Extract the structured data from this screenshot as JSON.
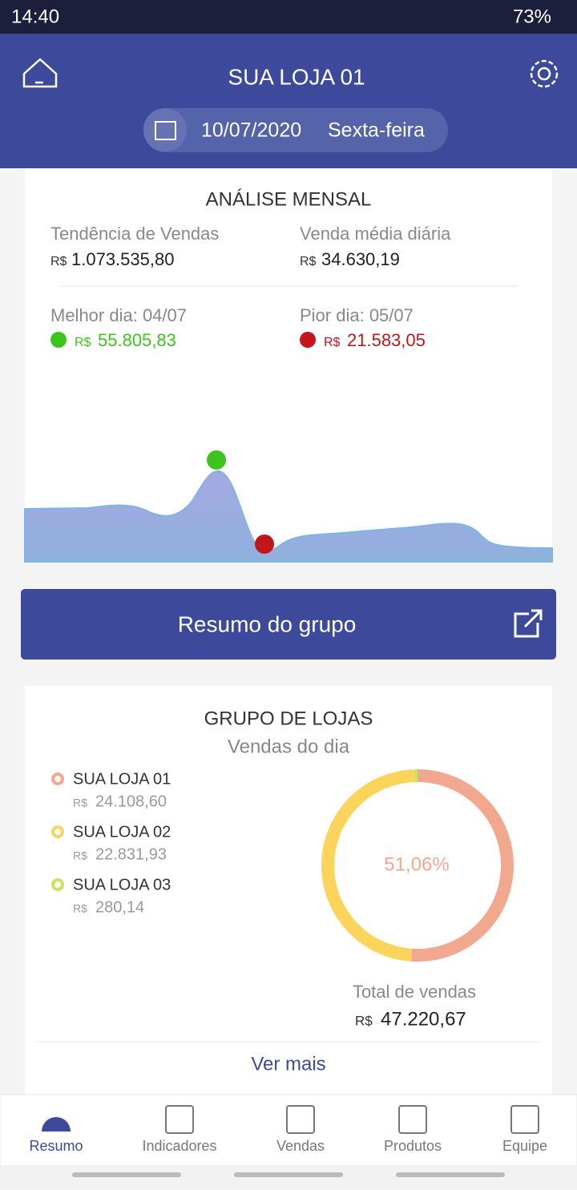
{
  "status_bar": {
    "time": "14:40",
    "battery": "73%"
  },
  "header": {
    "title": "SUA LOJA 01",
    "date": "10/07/2020",
    "weekday": "Sexta-feira"
  },
  "currency": "R$",
  "monthly": {
    "title": "ANÁLISE MENSAL",
    "trend_label": "Tendência de Vendas",
    "trend_value": "1.073.535,80",
    "avg_label": "Venda média diária",
    "avg_value": "34.630,19",
    "best_label": "Melhor dia: 04/07",
    "best_value": "55.805,83",
    "worst_label": "Pior dia: 05/07",
    "worst_value": "21.583,05"
  },
  "group_button": "Resumo do grupo",
  "group": {
    "title": "GRUPO DE LOJAS",
    "subtitle": "Vendas do dia",
    "chart_data": {
      "type": "donut",
      "categories": [
        "SUA LOJA 01",
        "SUA LOJA 02",
        "SUA LOJA 03"
      ],
      "values": [
        24108.6,
        22831.93,
        280.14
      ],
      "value_labels": [
        "24.108,60",
        "22.831,93",
        "280,14"
      ],
      "colors": [
        "#f2a88e",
        "#fbd55b",
        "#c6e65c"
      ],
      "center_label": "51,06%"
    },
    "total_label": "Total de vendas",
    "total_value": "47.220,67",
    "more": "Ver mais"
  },
  "nav": [
    "Resumo",
    "Indicadores",
    "Vendas",
    "Produtos",
    "Equipe"
  ]
}
